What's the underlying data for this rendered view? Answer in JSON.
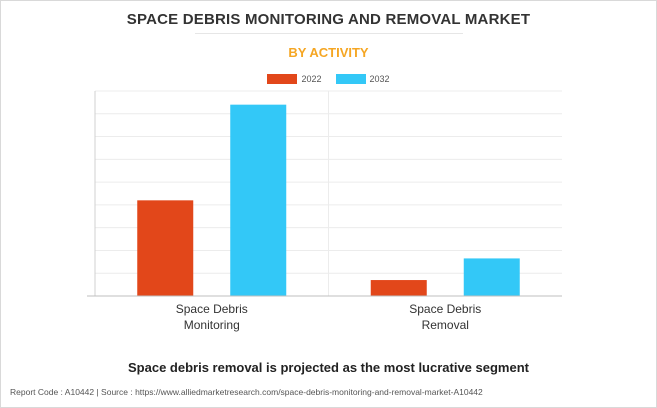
{
  "title": "SPACE DEBRIS MONITORING AND REMOVAL MARKET",
  "subtitle": "BY ACTIVITY",
  "colors": {
    "series_2022": "#e2471a",
    "series_2032": "#33c8f7",
    "accent": "#f5a623"
  },
  "chart_data": {
    "type": "bar",
    "categories": [
      "Space Debris\nMonitoring",
      "Space Debris\nRemoval"
    ],
    "series": [
      {
        "name": "2022",
        "values": [
          42,
          7
        ]
      },
      {
        "name": "2032",
        "values": [
          84,
          16.5
        ]
      }
    ],
    "ylim": [
      0,
      90
    ],
    "title": "SPACE DEBRIS MONITORING AND REMOVAL MARKET",
    "subtitle": "BY ACTIVITY",
    "xlabel": "",
    "ylabel": "",
    "grid": true,
    "legend_position": "top"
  },
  "caption": "Space debris removal is projected as the most lucrative segment",
  "footer": "Report Code : A10442  |  Source : https://www.alliedmarketresearch.com/space-debris-monitoring-and-removal-market-A10442"
}
